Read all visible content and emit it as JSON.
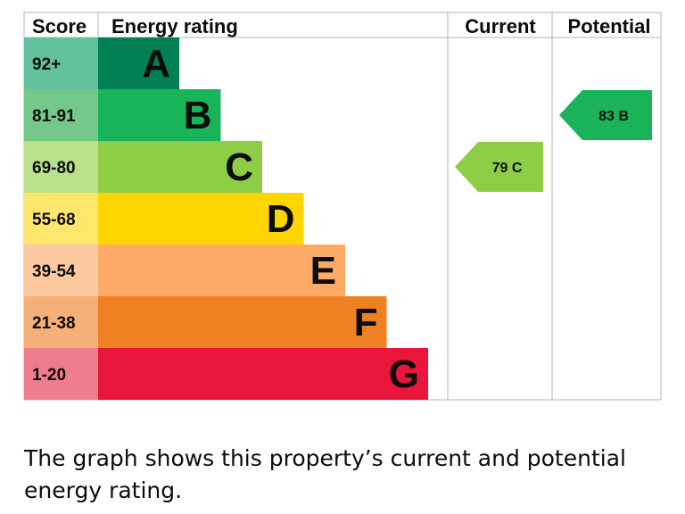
{
  "chart_data": {
    "type": "bar",
    "headers": {
      "score": "Score",
      "energy_rating": "Energy rating",
      "current": "Current",
      "potential": "Potential"
    },
    "bands": [
      {
        "score": "92+",
        "letter": "A",
        "rank": 1,
        "color": "#008054",
        "score_color": "#63c19b"
      },
      {
        "score": "81-91",
        "letter": "B",
        "rank": 2,
        "color": "#19b459",
        "score_color": "#74c98a"
      },
      {
        "score": "69-80",
        "letter": "C",
        "rank": 3,
        "color": "#8dce46",
        "score_color": "#b9e08b"
      },
      {
        "score": "55-68",
        "letter": "D",
        "rank": 4,
        "color": "#ffd500",
        "score_color": "#ffe66d"
      },
      {
        "score": "39-54",
        "letter": "E",
        "rank": 5,
        "color": "#fcaa65",
        "score_color": "#fdcaa0"
      },
      {
        "score": "21-38",
        "letter": "F",
        "rank": 6,
        "color": "#ef8023",
        "score_color": "#f5b07a"
      },
      {
        "score": "1-20",
        "letter": "G",
        "rank": 7,
        "color": "#e9153b",
        "score_color": "#f07d8e"
      }
    ],
    "current": {
      "value": 79,
      "band": "C",
      "label": "79  C",
      "color": "#8dce46"
    },
    "potential": {
      "value": 83,
      "band": "B",
      "label": "83  B",
      "color": "#19b459"
    }
  },
  "caption": "The graph shows this property’s current and potential energy rating."
}
